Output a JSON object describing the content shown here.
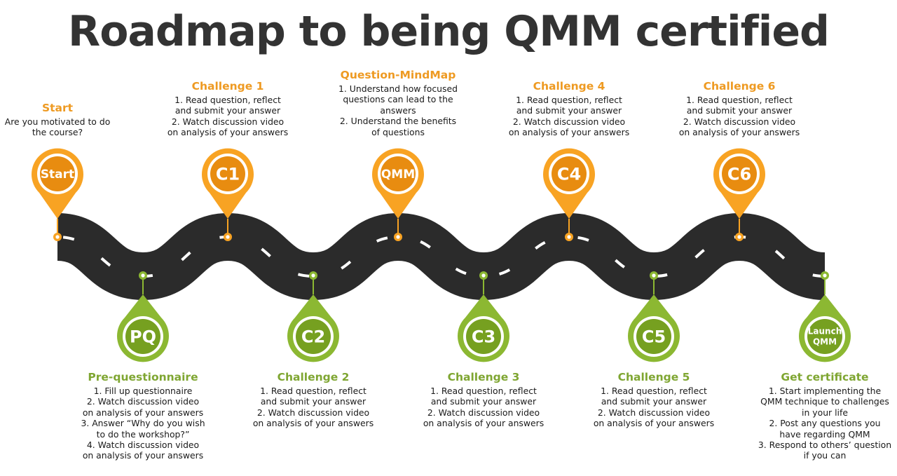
{
  "title": "Roadmap to being QMM certified",
  "colors": {
    "orange": "#f8a323",
    "orange_dark": "#e88c10",
    "green": "#8cb832",
    "green_dark": "#76a020",
    "road": "#2b2b2b",
    "dash": "#ffffff"
  },
  "stages": [
    {
      "id": "start",
      "badge": "Start",
      "title": "Start",
      "lines": [
        "Are you motivated to do",
        "the course?"
      ]
    },
    {
      "id": "pq",
      "badge": "PQ",
      "title": "Pre-questionnaire",
      "lines": [
        "1. Fill up questionnaire",
        "2. Watch discussion video",
        "on analysis of your answers",
        "3. Answer “Why do you wish",
        "to do the workshop?”",
        "4. Watch discussion video",
        "on analysis of your answers"
      ]
    },
    {
      "id": "c1",
      "badge": "C1",
      "title": "Challenge 1",
      "lines": [
        "1. Read question, reflect",
        "and submit your answer",
        "2. Watch discussion video",
        "on analysis of your answers"
      ]
    },
    {
      "id": "c2",
      "badge": "C2",
      "title": "Challenge 2",
      "lines": [
        "1. Read question, reflect",
        "and submit your answer",
        "2. Watch discussion video",
        "on analysis of your answers"
      ]
    },
    {
      "id": "qmm",
      "badge": "QMM",
      "title": "Question-MindMap",
      "lines": [
        "1. Understand how focused",
        "questions can lead to the",
        "answers",
        "2. Understand the benefits",
        "of questions"
      ]
    },
    {
      "id": "c3",
      "badge": "C3",
      "title": "Challenge 3",
      "lines": [
        "1. Read question, reflect",
        "and submit your answer",
        "2. Watch discussion video",
        "on analysis of your answers"
      ]
    },
    {
      "id": "c4",
      "badge": "C4",
      "title": "Challenge 4",
      "lines": [
        "1. Read question, reflect",
        "and submit your answer",
        "2. Watch discussion video",
        "on analysis of your answers"
      ]
    },
    {
      "id": "c5",
      "badge": "C5",
      "title": "Challenge 5",
      "lines": [
        "1. Read question, reflect",
        "and submit your answer",
        "2. Watch discussion video",
        "on analysis of your answers"
      ]
    },
    {
      "id": "c6",
      "badge": "C6",
      "title": "Challenge 6",
      "lines": [
        "1. Read question, reflect",
        "and submit your answer",
        "2. Watch discussion video",
        "on analysis of your answers"
      ]
    },
    {
      "id": "launch",
      "badge": [
        "Launch",
        "QMM"
      ],
      "title": "Get certificate",
      "lines": [
        "1. Start implementing the",
        "QMM technique to challenges",
        "in your life",
        "2. Post any questions you",
        "have regarding QMM",
        "3. Respond to others’ question",
        "if you can"
      ]
    }
  ]
}
